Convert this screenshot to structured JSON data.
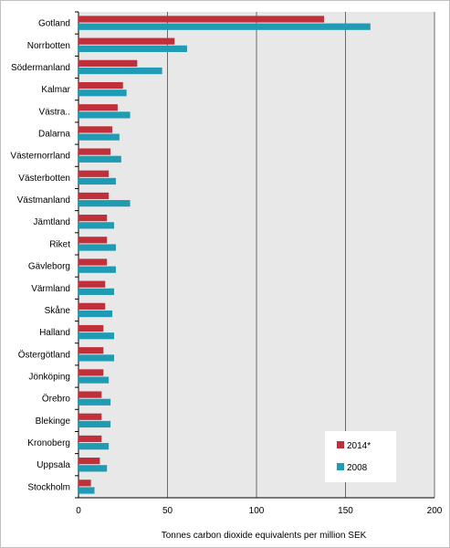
{
  "chart_data": {
    "type": "bar",
    "orientation": "horizontal",
    "categories": [
      "Gotland",
      "Norrbotten",
      "Södermanland",
      "Kalmar",
      "Västra..",
      "Dalarna",
      "Västernorrland",
      "Västerbotten",
      "Västmanland",
      "Jämtland",
      "Riket",
      "Gävleborg",
      "Värmland",
      "Skåne",
      "Halland",
      "Östergötland",
      "Jönköping",
      "Örebro",
      "Blekinge",
      "Kronoberg",
      "Uppsala",
      "Stockholm"
    ],
    "series": [
      {
        "name": "2014*",
        "color": "#c0303a",
        "values": [
          138,
          54,
          33,
          25,
          22,
          19,
          18,
          17,
          17,
          16,
          16,
          16,
          15,
          15,
          14,
          14,
          14,
          13,
          13,
          13,
          12,
          7
        ]
      },
      {
        "name": "2008",
        "color": "#1f9bb3",
        "values": [
          164,
          61,
          47,
          27,
          29,
          23,
          24,
          21,
          29,
          20,
          21,
          21,
          20,
          19,
          20,
          20,
          17,
          18,
          18,
          17,
          16,
          9
        ]
      }
    ],
    "xlabel": "Tonnes carbon dioxide equivalents per million SEK",
    "xlim": [
      0,
      200
    ],
    "xticks": [
      0,
      50,
      100,
      150,
      200
    ],
    "grid": "vertical",
    "plot_background": "#e8e8e8",
    "legend": "bottom-right"
  }
}
